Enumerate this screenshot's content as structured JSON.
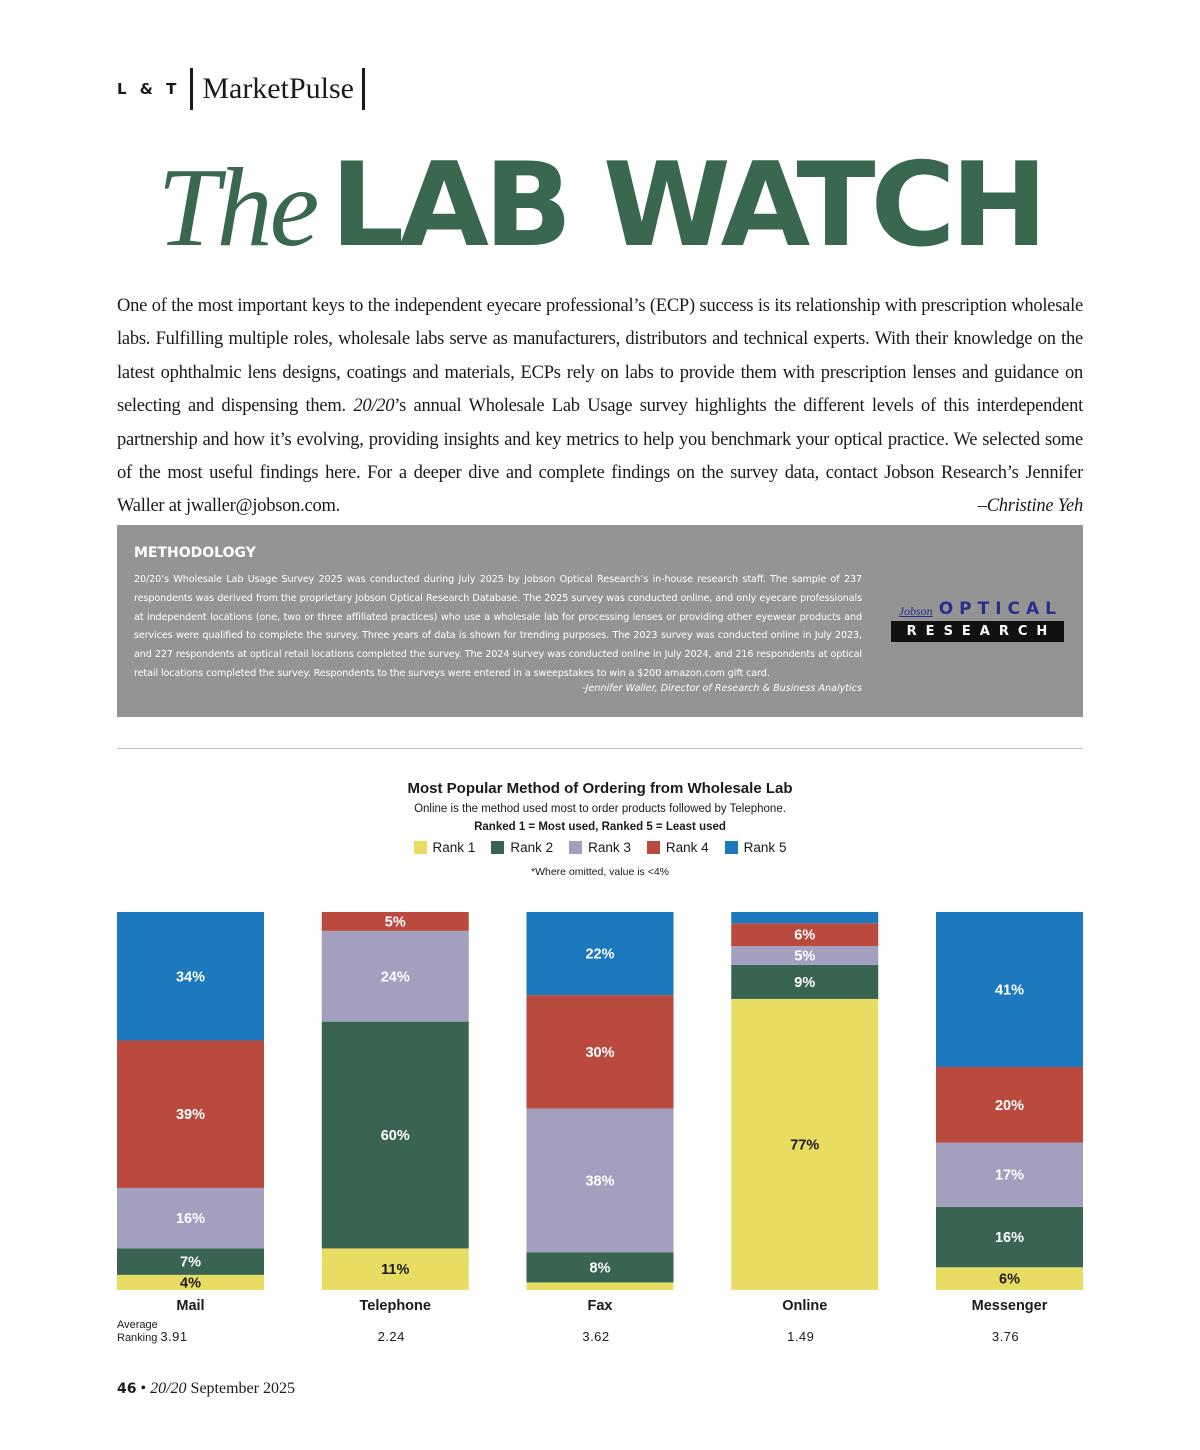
{
  "header": {
    "section": "L & T",
    "column": "MarketPulse"
  },
  "title": {
    "the": "The",
    "main": "LAB WATCH"
  },
  "intro": {
    "part1": "One of the most important keys to the independent eyecare professional’s (ECP) success is its relationship with prescription wholesale labs. Fulfilling multiple roles, wholesale labs serve as manufacturers, distributors and technical experts. With their knowledge on the latest ophthalmic lens designs, coatings and materials, ECPs rely on labs to provide them with prescription lenses and guidance on selecting and dispensing them. ",
    "magazine": "20/20",
    "part2": "’s annual Wholesale Lab Usage survey highlights the different levels of this interdependent partnership and how it’s evolving, providing insights and key metrics to help you benchmark your optical practice. We selected some of the most useful findings here. For a deeper dive and complete findings on the survey data, contact Jobson Research’s Jennifer Waller at jwaller@jobson.com.",
    "signature": "–Christine Yeh"
  },
  "methodology": {
    "heading": "METHODOLOGY",
    "body": "20/20’s Wholesale Lab Usage Survey 2025 was conducted during July 2025 by Jobson Optical Research’s in-house research staff. The sample of 237 respondents was derived from the proprietary Jobson Optical Research Database. The 2025 survey was conducted online, and only eyecare professionals at independent locations (one, two or three affiliated practices) who use a wholesale lab for processing lenses or providing other eyewear products and services were qualified to complete the survey. Three years of data is shown for trending purposes. The 2023 survey was conducted online in July 2023, and 227 respondents at optical retail locations completed the survey. The 2024 survey was conducted online in July 2024, and 216 respondents at optical retail locations completed the survey. Respondents to the surveys were entered in a sweepstakes to win a $200 amazon.com gift card.",
    "attribution": "-Jennifer Waller, Director of Research & Business Analytics",
    "logo": {
      "jobson": "Jobson",
      "optical": "OPTICAL",
      "research": "RESEARCH"
    }
  },
  "chart_data": {
    "type": "bar",
    "stacked": true,
    "title": "Most Popular Method of Ordering from Wholesale Lab",
    "subtitle": "Online is the method used most to order products followed by Telephone.",
    "rank_note": "Ranked 1 = Most used, Ranked 5 = Least used",
    "omitted_note": "*Where omitted, value is <4%",
    "legend_position": "top",
    "ylim": [
      0,
      100
    ],
    "categories": [
      "Mail",
      "Telephone",
      "Fax",
      "Online",
      "Messenger"
    ],
    "series": [
      {
        "name": "Rank 1",
        "color": "#e8dc62",
        "values": [
          4,
          11,
          2,
          77,
          6
        ],
        "labels": [
          "4%",
          "11%",
          "",
          "77%",
          "6%"
        ]
      },
      {
        "name": "Rank 2",
        "color": "#3a6452",
        "values": [
          7,
          60,
          8,
          9,
          16
        ],
        "labels": [
          "7%",
          "60%",
          "8%",
          "9%",
          "16%"
        ]
      },
      {
        "name": "Rank 3",
        "color": "#a3a0bf",
        "values": [
          16,
          24,
          38,
          5,
          17
        ],
        "labels": [
          "16%",
          "24%",
          "38%",
          "5%",
          "17%"
        ]
      },
      {
        "name": "Rank 4",
        "color": "#b94a3d",
        "values": [
          39,
          5,
          30,
          6,
          20
        ],
        "labels": [
          "39%",
          "5%",
          "30%",
          "6%",
          "20%"
        ]
      },
      {
        "name": "Rank 5",
        "color": "#1c79be",
        "values": [
          34,
          0,
          22,
          3,
          41
        ],
        "labels": [
          "34%",
          "",
          "22%",
          "",
          "41%"
        ]
      }
    ],
    "average_ranking_label": "Average Ranking",
    "average_ranking": [
      "3.91",
      "2.24",
      "3.62",
      "1.49",
      "3.76"
    ]
  },
  "footer": {
    "page": "46",
    "magazine": "20/20",
    "issue": "September 2025"
  }
}
